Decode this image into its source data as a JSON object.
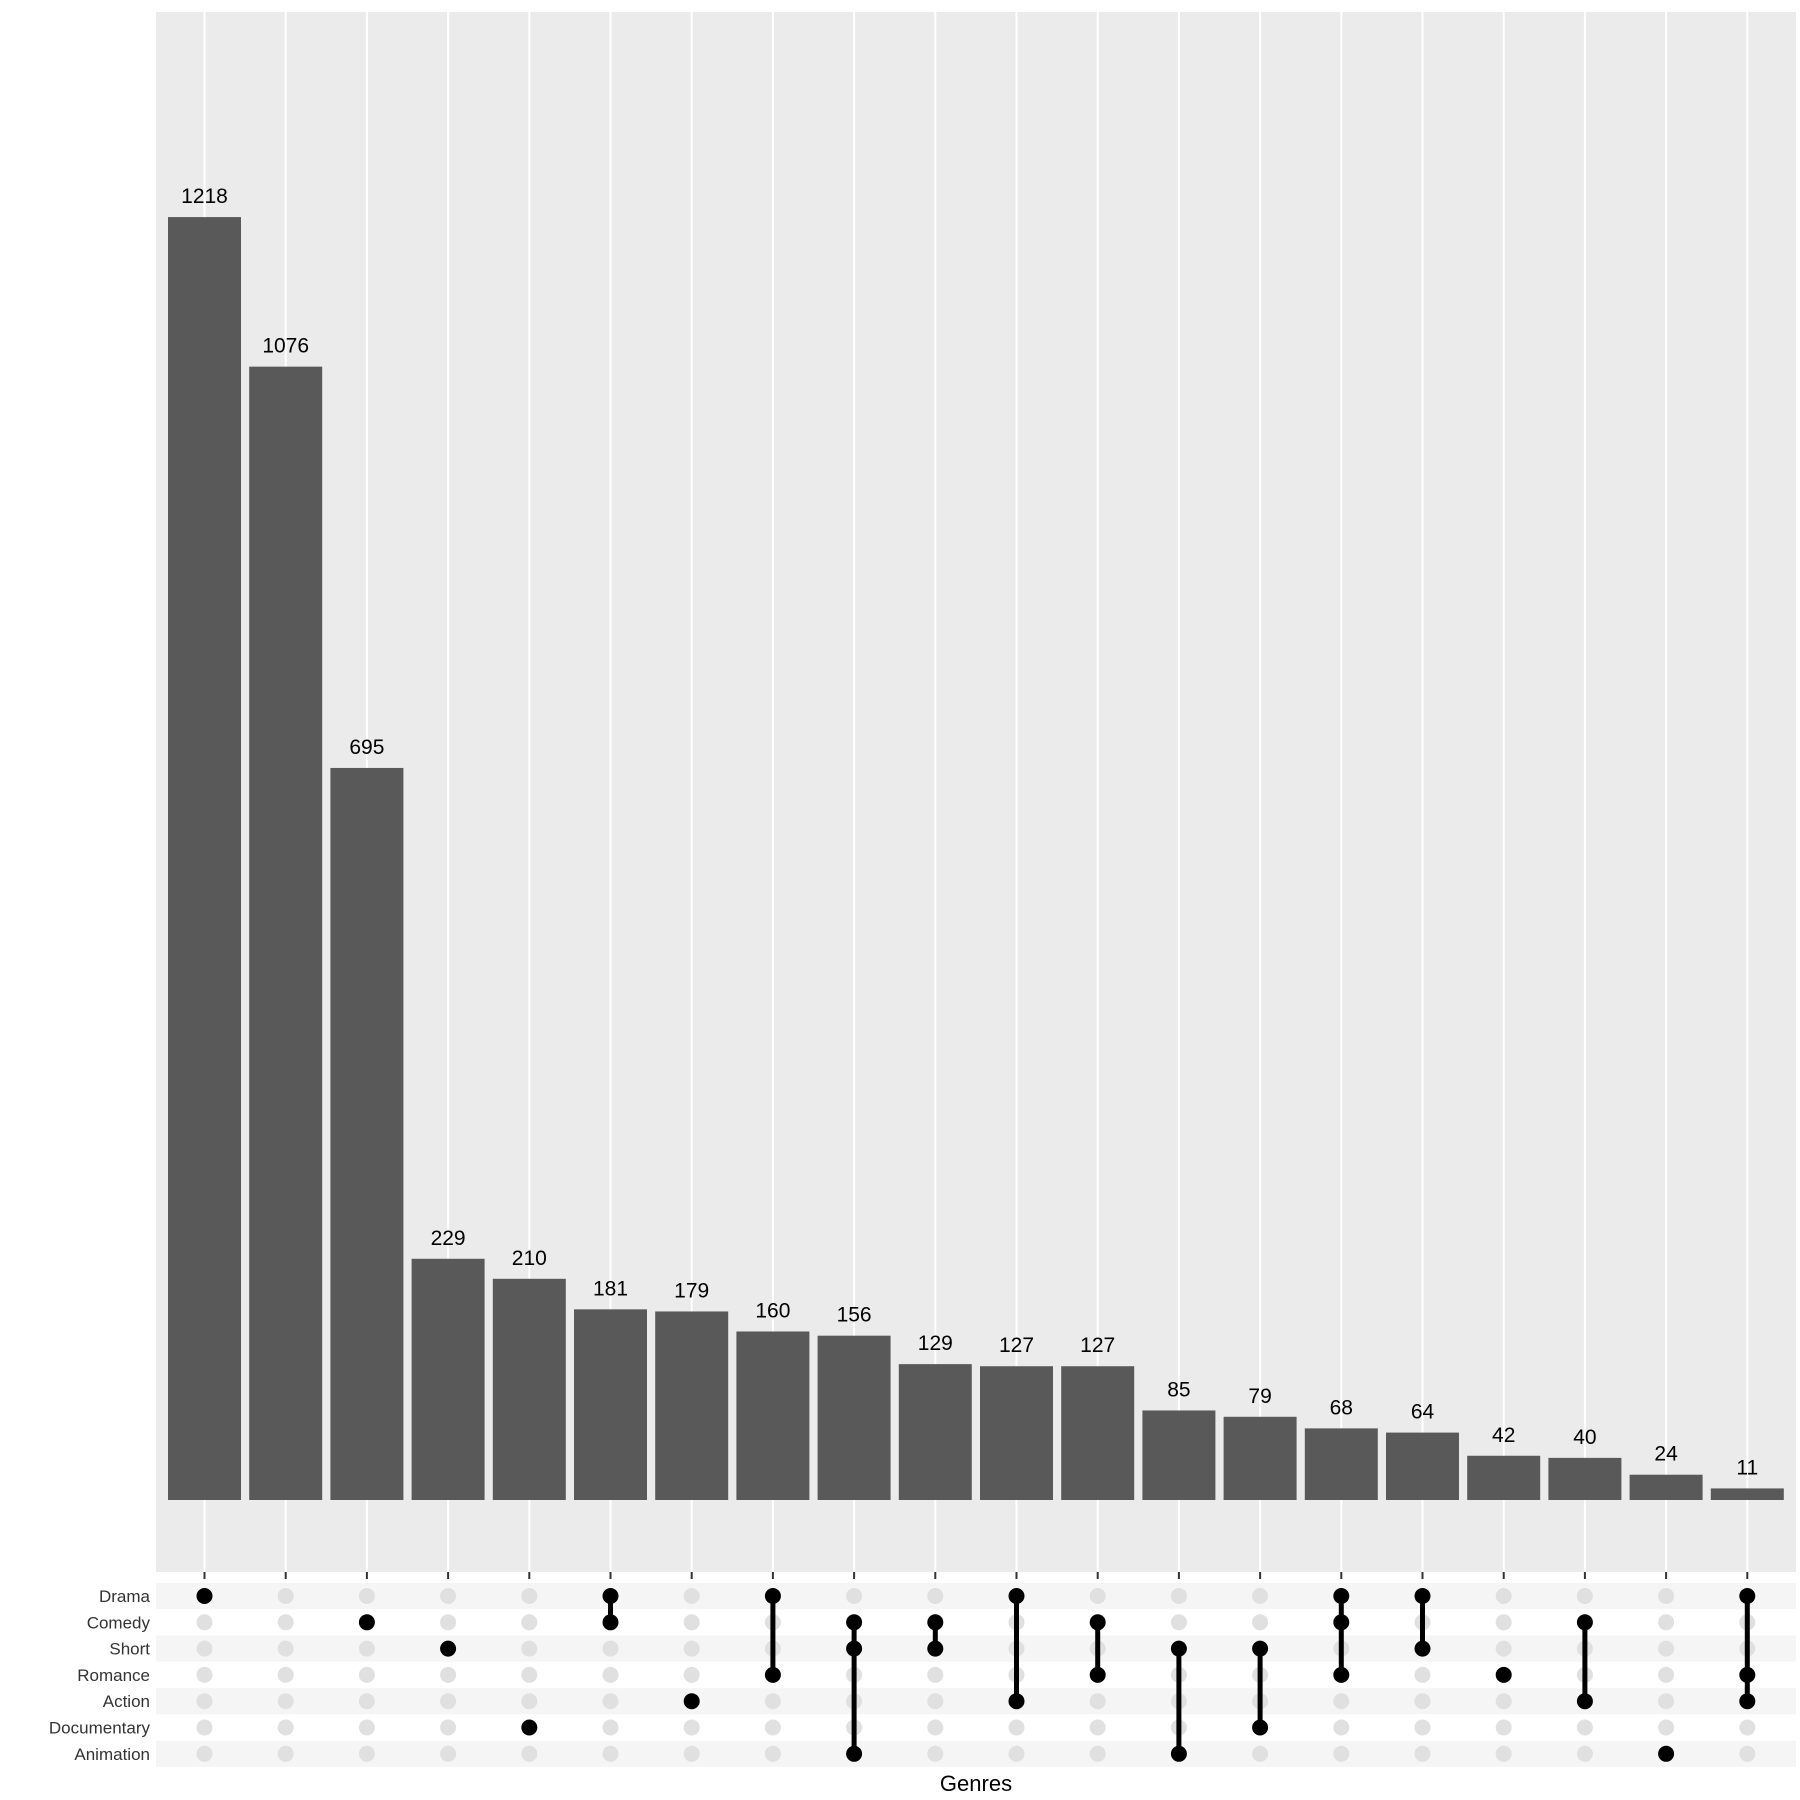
{
  "chart_data": {
    "type": "bar",
    "subtype": "upset",
    "xlabel": "Genres",
    "ylabel": "",
    "ylim": [
      0,
      1500
    ],
    "grid": true,
    "sets": [
      "Drama",
      "Comedy",
      "Short",
      "Romance",
      "Action",
      "Documentary",
      "Animation"
    ],
    "values": [
      1218,
      1076,
      695,
      229,
      210,
      181,
      179,
      160,
      156,
      129,
      127,
      127,
      85,
      79,
      68,
      64,
      42,
      40,
      24,
      11
    ],
    "intersections": [
      [
        "Drama"
      ],
      [],
      [
        "Comedy"
      ],
      [
        "Short"
      ],
      [
        "Documentary"
      ],
      [
        "Drama",
        "Comedy"
      ],
      [
        "Action"
      ],
      [
        "Drama",
        "Romance"
      ],
      [
        "Comedy",
        "Short",
        "Animation"
      ],
      [
        "Comedy",
        "Short"
      ],
      [
        "Drama",
        "Action"
      ],
      [
        "Comedy",
        "Romance"
      ],
      [
        "Short",
        "Animation"
      ],
      [
        "Short",
        "Documentary"
      ],
      [
        "Drama",
        "Comedy",
        "Romance"
      ],
      [
        "Drama",
        "Short"
      ],
      [
        "Romance"
      ],
      [
        "Comedy",
        "Action"
      ],
      [
        "Animation"
      ],
      [
        "Drama",
        "Romance",
        "Action"
      ]
    ],
    "colors": {
      "panel": "#ebebeb",
      "gridline": "#ffffff",
      "bar": "#595959",
      "dot_active": "#000000",
      "dot_inactive": "#e0e0e0",
      "stripe": "#f5f5f5"
    }
  }
}
